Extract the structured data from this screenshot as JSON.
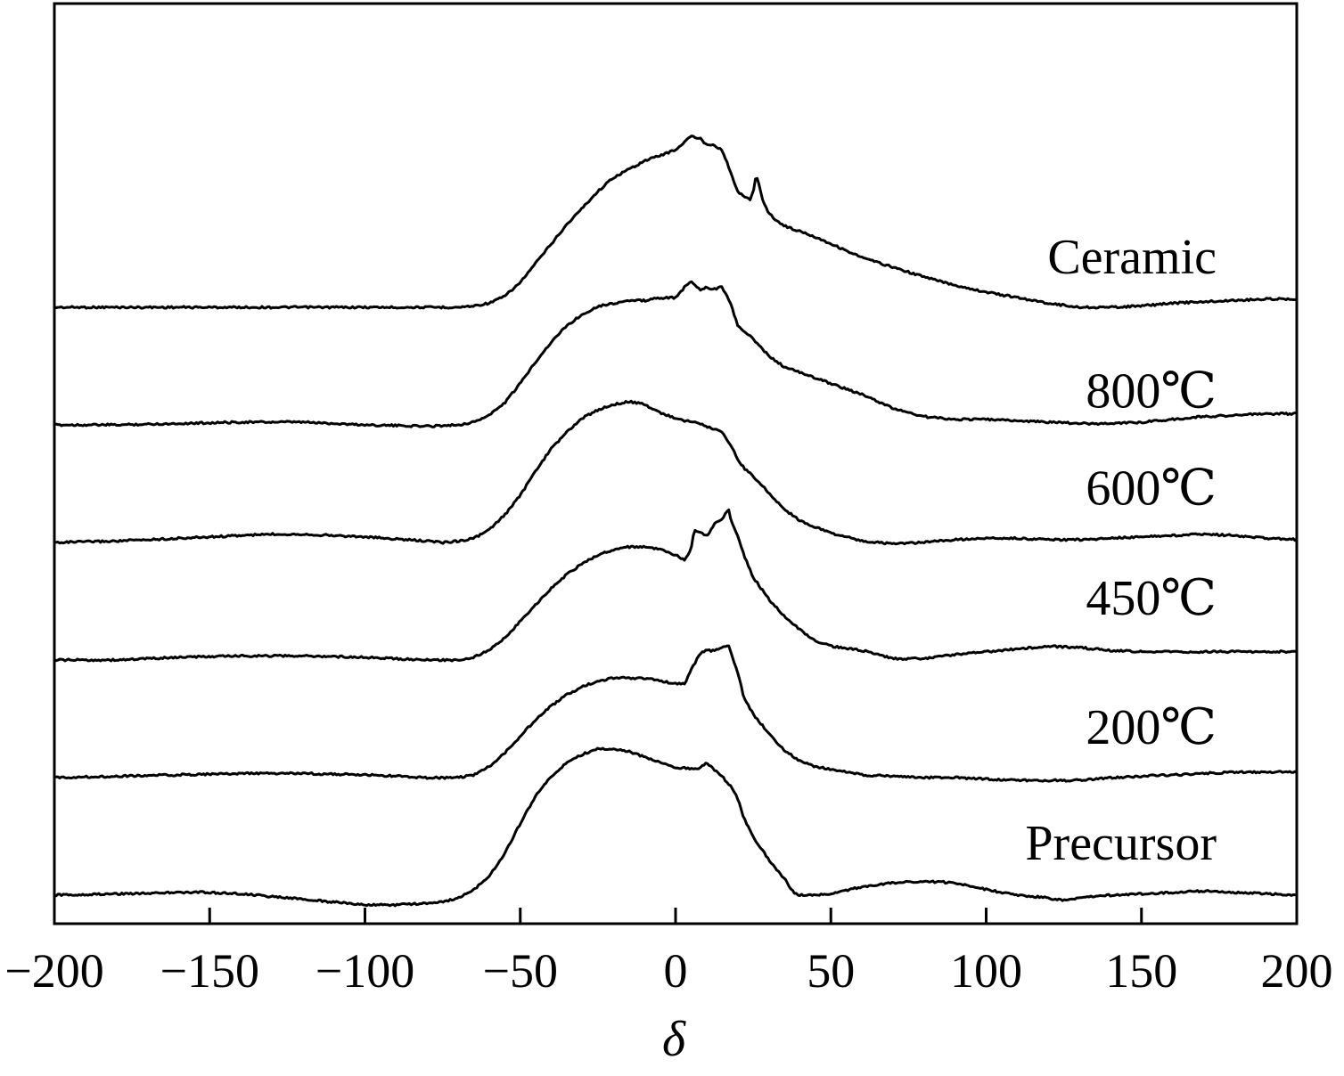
{
  "chart_data": {
    "type": "line",
    "title": "",
    "xlabel": "δ",
    "ylabel": "",
    "xlim": [
      -200,
      200
    ],
    "xticks": [
      -200,
      -150,
      -100,
      -50,
      0,
      50,
      100,
      150,
      200
    ],
    "xtick_labels": [
      "−200",
      "−150",
      "−100",
      "−50",
      "0",
      "50",
      "100",
      "150",
      "200"
    ],
    "y_axis_ticks": false,
    "grid": false,
    "legend": "inline labels to the right of each curve",
    "line_color": "#000000",
    "series": [
      {
        "name": "Ceramic",
        "offset": 5,
        "x": [
          -200,
          -180,
          -160,
          -140,
          -120,
          -100,
          -80,
          -70,
          -65,
          -60,
          -55,
          -50,
          -45,
          -40,
          -35,
          -30,
          -25,
          -20,
          -15,
          -10,
          -5,
          0,
          3,
          5,
          8,
          10,
          12,
          15,
          18,
          20,
          22,
          24,
          25,
          26,
          27,
          28,
          30,
          33,
          35,
          40,
          45,
          50,
          55,
          60,
          70,
          80,
          90,
          100,
          110,
          120,
          130,
          140,
          150,
          160,
          170,
          180,
          190,
          200
        ],
        "y": [
          0,
          0,
          0,
          0,
          0,
          0,
          0,
          0,
          0.05,
          0.15,
          0.4,
          0.9,
          1.6,
          2.3,
          3.0,
          3.6,
          4.2,
          4.7,
          5.0,
          5.3,
          5.5,
          5.7,
          6.0,
          6.2,
          6.1,
          5.9,
          5.9,
          5.7,
          4.8,
          4.2,
          4.0,
          3.9,
          4.2,
          4.8,
          4.4,
          3.9,
          3.4,
          3.1,
          2.95,
          2.75,
          2.55,
          2.3,
          2.05,
          1.8,
          1.45,
          1.1,
          0.8,
          0.55,
          0.35,
          0.15,
          0,
          0,
          0.05,
          0.15,
          0.2,
          0.25,
          0.3,
          0.3
        ]
      },
      {
        "name": "800℃",
        "offset": 4,
        "x": [
          -200,
          -180,
          -160,
          -140,
          -120,
          -100,
          -80,
          -70,
          -65,
          -60,
          -55,
          -50,
          -45,
          -40,
          -35,
          -30,
          -25,
          -20,
          -15,
          -10,
          -5,
          0,
          3,
          5,
          8,
          10,
          12,
          15,
          18,
          20,
          22,
          25,
          30,
          35,
          40,
          45,
          50,
          55,
          60,
          70,
          80,
          90,
          100,
          110,
          120,
          130,
          140,
          150,
          160,
          170,
          180,
          190,
          200
        ],
        "y": [
          0,
          0,
          0.05,
          0.1,
          0.1,
          0,
          -0.05,
          0,
          0.1,
          0.35,
          0.8,
          1.5,
          2.3,
          3.0,
          3.6,
          4.0,
          4.3,
          4.4,
          4.5,
          4.5,
          4.6,
          4.6,
          5.0,
          5.2,
          4.9,
          5.0,
          4.9,
          5.0,
          4.3,
          3.6,
          3.4,
          3.1,
          2.5,
          2.1,
          1.9,
          1.7,
          1.5,
          1.3,
          1.1,
          0.6,
          0.3,
          0.2,
          0.2,
          0.15,
          0.1,
          0.05,
          0.05,
          0.1,
          0.2,
          0.3,
          0.35,
          0.4,
          0.4
        ]
      },
      {
        "name": "600℃",
        "offset": 3,
        "x": [
          -200,
          -180,
          -160,
          -140,
          -130,
          -120,
          -100,
          -80,
          -75,
          -70,
          -65,
          -60,
          -55,
          -50,
          -45,
          -40,
          -35,
          -30,
          -25,
          -20,
          -15,
          -10,
          -5,
          0,
          3,
          5,
          10,
          15,
          18,
          20,
          22,
          25,
          30,
          35,
          40,
          45,
          50,
          60,
          70,
          80,
          90,
          100,
          110,
          120,
          130,
          140,
          150,
          160,
          170,
          180,
          190,
          200
        ],
        "y": [
          0,
          0.05,
          0.15,
          0.25,
          0.3,
          0.3,
          0.2,
          0.05,
          0,
          0.05,
          0.15,
          0.45,
          1.0,
          1.7,
          2.6,
          3.4,
          4.0,
          4.5,
          4.8,
          5.0,
          5.1,
          5.0,
          4.7,
          4.5,
          4.4,
          4.4,
          4.2,
          4.0,
          3.5,
          3.0,
          2.7,
          2.4,
          1.8,
          1.2,
          0.8,
          0.55,
          0.35,
          0.05,
          -0.05,
          0,
          0.1,
          0.15,
          0.15,
          0.1,
          0.1,
          0.15,
          0.2,
          0.25,
          0.3,
          0.25,
          0.15,
          0.1
        ]
      },
      {
        "name": "450℃",
        "offset": 2,
        "x": [
          -200,
          -180,
          -160,
          -140,
          -120,
          -100,
          -80,
          -70,
          -65,
          -60,
          -55,
          -50,
          -45,
          -40,
          -35,
          -30,
          -25,
          -20,
          -15,
          -10,
          -5,
          0,
          3,
          5,
          6,
          8,
          10,
          12,
          13,
          15,
          17,
          18,
          20,
          22,
          25,
          30,
          35,
          40,
          45,
          50,
          60,
          70,
          80,
          90,
          100,
          110,
          120,
          130,
          140,
          150,
          160,
          170,
          180,
          190,
          200
        ],
        "y": [
          0,
          0,
          0.1,
          0.15,
          0.15,
          0.1,
          0,
          0,
          0.1,
          0.35,
          0.8,
          1.4,
          2.0,
          2.6,
          3.1,
          3.5,
          3.8,
          4.0,
          4.1,
          4.1,
          4.0,
          3.8,
          3.6,
          4.0,
          4.7,
          4.6,
          4.5,
          4.8,
          5.0,
          5.1,
          5.5,
          5.0,
          4.5,
          3.8,
          3.0,
          2.2,
          1.6,
          1.1,
          0.7,
          0.5,
          0.35,
          0.05,
          0.05,
          0.2,
          0.3,
          0.4,
          0.5,
          0.45,
          0.35,
          0.3,
          0.3,
          0.3,
          0.3,
          0.3,
          0.3
        ]
      },
      {
        "name": "200℃",
        "offset": 1,
        "x": [
          -200,
          -180,
          -160,
          -140,
          -120,
          -100,
          -80,
          -70,
          -65,
          -60,
          -55,
          -50,
          -45,
          -40,
          -35,
          -30,
          -25,
          -20,
          -15,
          -10,
          -5,
          0,
          3,
          5,
          7,
          8,
          10,
          12,
          15,
          17,
          18,
          20,
          22,
          25,
          30,
          35,
          40,
          45,
          50,
          60,
          70,
          80,
          90,
          100,
          110,
          120,
          125,
          130,
          140,
          150,
          160,
          170,
          180,
          190,
          200
        ],
        "y": [
          0,
          0.05,
          0.1,
          0.15,
          0.15,
          0.1,
          0,
          0,
          0.1,
          0.4,
          0.9,
          1.5,
          2.1,
          2.6,
          3.0,
          3.3,
          3.5,
          3.6,
          3.6,
          3.6,
          3.5,
          3.4,
          3.4,
          3.9,
          4.3,
          4.5,
          4.6,
          4.6,
          4.7,
          4.8,
          4.5,
          3.8,
          2.9,
          2.3,
          1.6,
          1.0,
          0.6,
          0.4,
          0.3,
          0.1,
          0.05,
          0,
          0,
          -0.05,
          -0.1,
          -0.1,
          -0.1,
          -0.1,
          0,
          0.05,
          0.1,
          0.15,
          0.2,
          0.2,
          0.2
        ]
      },
      {
        "name": "Precursor",
        "offset": 0,
        "x": [
          -200,
          -180,
          -160,
          -150,
          -140,
          -120,
          -100,
          -90,
          -80,
          -75,
          -70,
          -65,
          -60,
          -55,
          -50,
          -45,
          -40,
          -35,
          -30,
          -25,
          -20,
          -15,
          -10,
          -5,
          0,
          3,
          5,
          8,
          10,
          12,
          15,
          18,
          20,
          22,
          25,
          30,
          35,
          38,
          40,
          45,
          50,
          60,
          70,
          80,
          90,
          100,
          110,
          120,
          125,
          130,
          140,
          150,
          160,
          170,
          180,
          190,
          200
        ],
        "y": [
          0,
          0.05,
          0.1,
          0.1,
          0.05,
          -0.15,
          -0.35,
          -0.35,
          -0.3,
          -0.25,
          -0.1,
          0.2,
          0.7,
          1.5,
          2.6,
          3.6,
          4.3,
          4.8,
          5.1,
          5.3,
          5.3,
          5.2,
          5.0,
          4.8,
          4.6,
          4.6,
          4.6,
          4.6,
          4.8,
          4.6,
          4.3,
          3.9,
          3.5,
          2.8,
          2.1,
          1.3,
          0.6,
          0.1,
          0,
          0,
          0.05,
          0.3,
          0.45,
          0.5,
          0.45,
          0.2,
          0,
          -0.1,
          -0.2,
          -0.1,
          0,
          0.05,
          0.1,
          0.15,
          0.1,
          0.05,
          0
        ]
      }
    ]
  }
}
